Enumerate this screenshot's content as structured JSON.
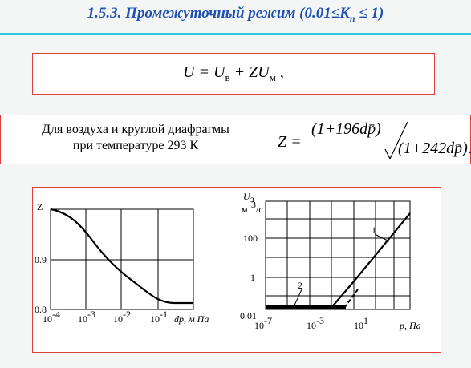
{
  "title": {
    "text": "1.5.3. Промежуточный режим (0.01≤",
    "k": "K",
    "k_sub": "п",
    "tail": " ≤ 1)"
  },
  "formula_u": {
    "lhs": "U = U",
    "sub1": "в",
    "mid": " + ZU",
    "sub2": "м",
    "end": " ,"
  },
  "conditions": [
    "Для воздуха и круглой диафрагмы",
    "при температуре 293 К"
  ],
  "formula_z": {
    "lhs": "Z =",
    "numerator": "(1+196dp̄)",
    "denominator": "(1+242dp̄)",
    "end": "."
  },
  "plot_left": {
    "y_label": "Z",
    "yticks": [
      "0.9",
      "0.8"
    ],
    "xticks": [
      {
        "base": "10",
        "exp": "-4"
      },
      {
        "base": "10",
        "exp": "-3"
      },
      {
        "base": "10",
        "exp": "-2"
      },
      {
        "base": "10",
        "exp": "-1"
      }
    ],
    "x_label": "dp, м Па"
  },
  "plot_right": {
    "y_label": "U",
    "y_label_sub": "з",
    "y_unit": "м",
    "y_unit_exp": "3",
    "y_unit_tail": "/с",
    "yticks": [
      "100",
      "1",
      "0.01"
    ],
    "xticks": [
      {
        "base": "10",
        "exp": "-7"
      },
      {
        "base": "10",
        "exp": "-3"
      },
      {
        "base": "10",
        "exp": "1"
      }
    ],
    "x_label": "p, Па",
    "curve_labels": [
      "1",
      "2"
    ]
  }
}
